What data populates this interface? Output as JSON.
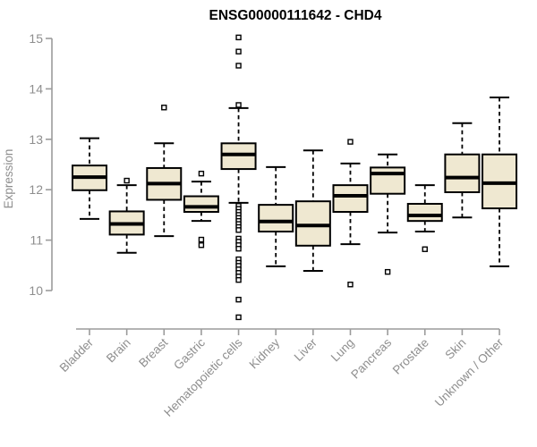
{
  "chart_data": {
    "type": "boxplot",
    "title": "ENSG00000111642 - CHD4",
    "ylabel": "Expression",
    "xlabel": "",
    "ylim": [
      10,
      15
    ],
    "yticks": [
      10,
      11,
      12,
      13,
      14,
      15
    ],
    "grid": false,
    "legend": "none",
    "categories": [
      "Bladder",
      "Brain",
      "Breast",
      "Gastric",
      "Hematopoietic cells",
      "Kidney",
      "Liver",
      "Lung",
      "Pancreas",
      "Prostate",
      "Skin",
      "Unknown / Other"
    ],
    "boxes": [
      {
        "category": "Bladder",
        "whisker_low": 11.42,
        "q1": 11.99,
        "median": 12.25,
        "q3": 12.48,
        "whisker_high": 13.02,
        "outliers": []
      },
      {
        "category": "Brain",
        "whisker_low": 10.75,
        "q1": 11.11,
        "median": 11.32,
        "q3": 11.57,
        "whisker_high": 12.09,
        "outliers": [
          12.18
        ]
      },
      {
        "category": "Breast",
        "whisker_low": 11.08,
        "q1": 11.8,
        "median": 12.12,
        "q3": 12.43,
        "whisker_high": 12.92,
        "outliers": [
          13.63
        ]
      },
      {
        "category": "Gastric",
        "whisker_low": 11.38,
        "q1": 11.56,
        "median": 11.66,
        "q3": 11.87,
        "whisker_high": 12.16,
        "outliers": [
          12.32,
          11.01,
          10.9
        ]
      },
      {
        "category": "Hematopoietic cells",
        "whisker_low": 11.74,
        "q1": 12.41,
        "median": 12.7,
        "q3": 12.92,
        "whisker_high": 13.62,
        "outliers": [
          15.02,
          14.74,
          14.46,
          13.68,
          11.68,
          11.62,
          11.56,
          11.5,
          11.44,
          11.38,
          11.32,
          11.26,
          11.2,
          11.03,
          10.97,
          10.9,
          10.83,
          10.62,
          10.55,
          10.49,
          10.42,
          10.35,
          10.28,
          10.21,
          9.82,
          9.47
        ]
      },
      {
        "category": "Kidney",
        "whisker_low": 10.48,
        "q1": 11.17,
        "median": 11.37,
        "q3": 11.7,
        "whisker_high": 12.45,
        "outliers": []
      },
      {
        "category": "Liver",
        "whisker_low": 10.39,
        "q1": 10.89,
        "median": 11.29,
        "q3": 11.77,
        "whisker_high": 12.78,
        "outliers": []
      },
      {
        "category": "Lung",
        "whisker_low": 10.92,
        "q1": 11.56,
        "median": 11.88,
        "q3": 12.09,
        "whisker_high": 12.52,
        "outliers": [
          12.95,
          10.12
        ]
      },
      {
        "category": "Pancreas",
        "whisker_low": 11.15,
        "q1": 11.92,
        "median": 12.32,
        "q3": 12.44,
        "whisker_high": 12.7,
        "outliers": [
          10.37
        ]
      },
      {
        "category": "Prostate",
        "whisker_low": 11.17,
        "q1": 11.38,
        "median": 11.49,
        "q3": 11.72,
        "whisker_high": 12.09,
        "outliers": [
          10.82
        ]
      },
      {
        "category": "Skin",
        "whisker_low": 11.45,
        "q1": 11.95,
        "median": 12.24,
        "q3": 12.7,
        "whisker_high": 13.32,
        "outliers": []
      },
      {
        "category": "Unknown / Other",
        "whisker_low": 10.48,
        "q1": 11.63,
        "median": 12.13,
        "q3": 12.7,
        "whisker_high": 13.83,
        "outliers": []
      }
    ],
    "style": {
      "box_fill": "#EFE8D1",
      "box_border": "#000000",
      "median_color": "#000000",
      "whisker_color": "#000000",
      "outlier_shape": "open-square",
      "axis_color": "#9B9B9B",
      "tick_label_color": "#8E8E8E",
      "title_color": "#000000",
      "background": "#FFFFFF"
    }
  }
}
